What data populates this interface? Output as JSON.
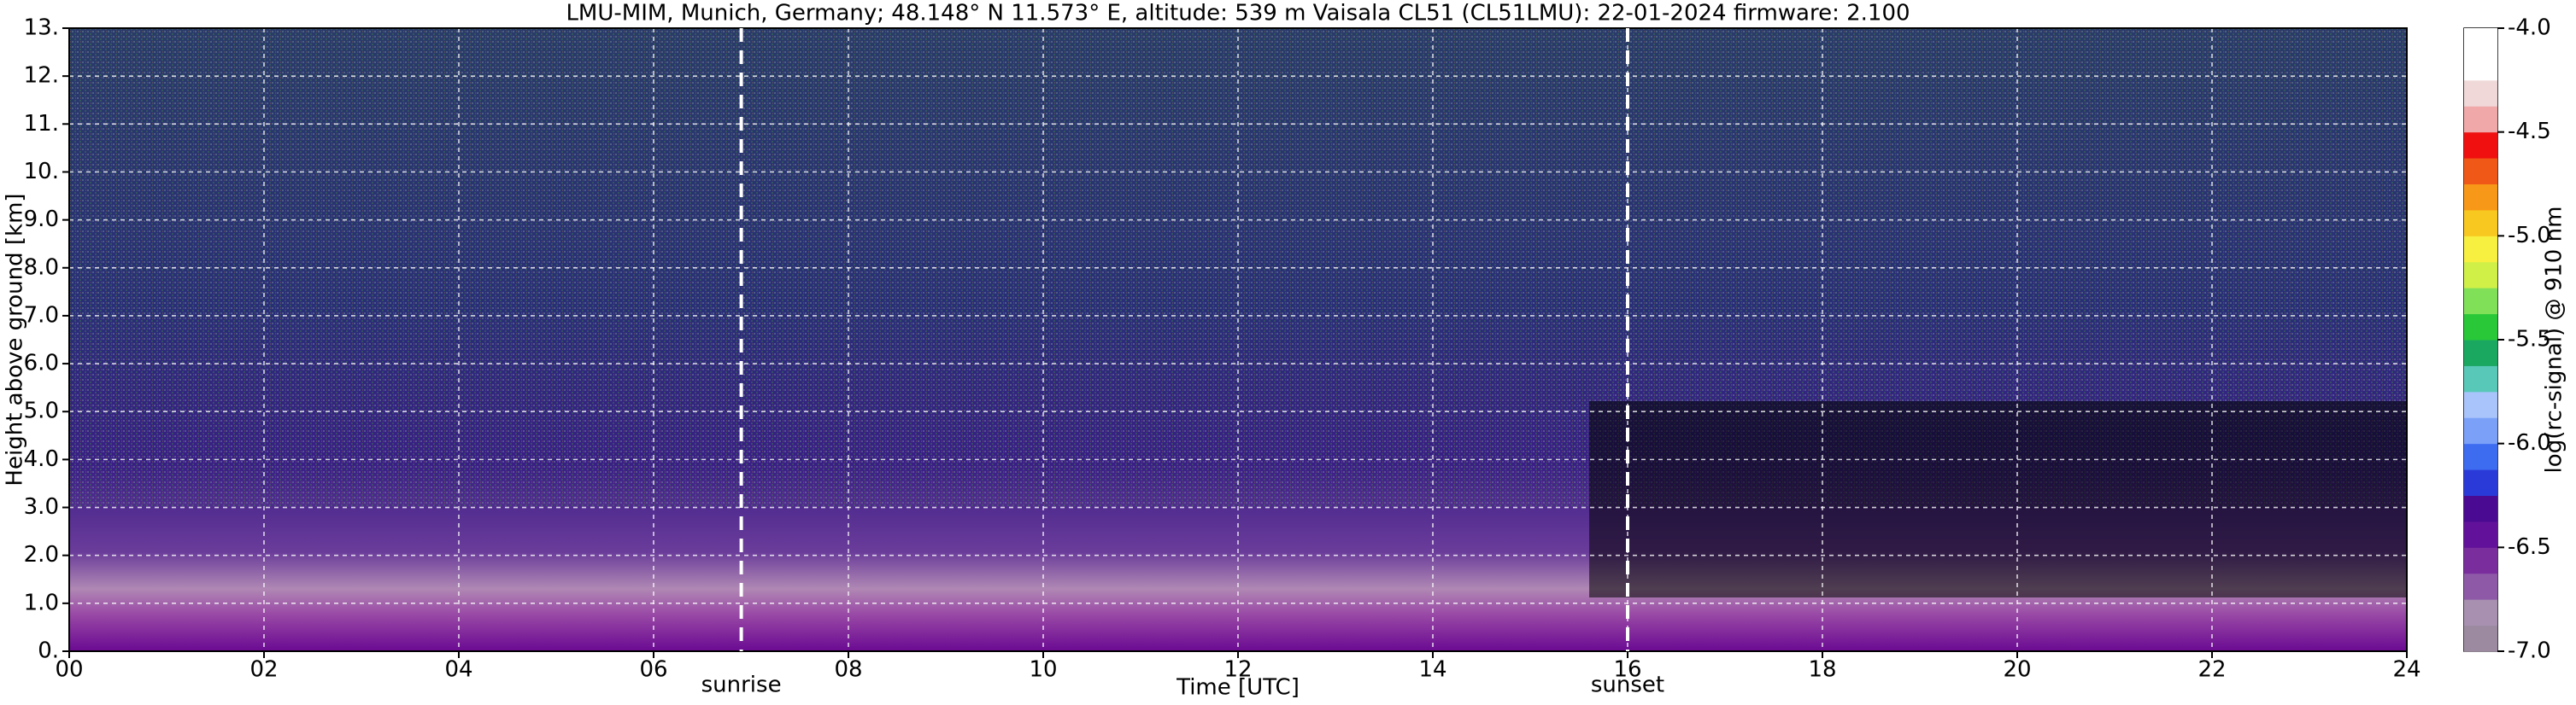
{
  "chart_data": {
    "type": "heatmap",
    "title": "LMU-MIM, Munich, Germany; 48.148° N 11.573° E, altitude: 539 m    Vaisala CL51 (CL51LMU): 22-01-2024    firmware: 2.100",
    "xlabel": "Time [UTC]",
    "ylabel": "Height above ground [km]",
    "xlim": [
      0,
      24
    ],
    "xticks": [
      {
        "value": 0,
        "label": "00"
      },
      {
        "value": 2,
        "label": "02"
      },
      {
        "value": 4,
        "label": "04"
      },
      {
        "value": 6,
        "label": "06"
      },
      {
        "value": 8,
        "label": "08"
      },
      10,
      12,
      14,
      16,
      18,
      20,
      22,
      24
    ],
    "ylim": [
      0,
      13
    ],
    "yticks": [
      {
        "value": 0,
        "label": "0."
      },
      {
        "value": 1,
        "label": "1.0"
      },
      {
        "value": 2,
        "label": "2.0"
      },
      {
        "value": 3,
        "label": "3.0"
      },
      {
        "value": 4,
        "label": "4.0"
      },
      {
        "value": 5,
        "label": "5.0"
      },
      {
        "value": 6,
        "label": "6.0"
      },
      {
        "value": 7,
        "label": "7.0"
      },
      {
        "value": 8,
        "label": "8.0"
      },
      {
        "value": 9,
        "label": "9.0"
      },
      {
        "value": 10,
        "label": "10."
      },
      {
        "value": 11,
        "label": "11."
      },
      {
        "value": 12,
        "label": "12."
      },
      {
        "value": 13,
        "label": "13."
      }
    ],
    "grid": true,
    "annotations": [
      {
        "text": "sunrise",
        "x": 6.9
      },
      {
        "text": "sunset",
        "x": 16.0
      }
    ],
    "colorbar": {
      "label": "log(rc-signal) @ 910 nm",
      "lim": [
        -7,
        -4
      ],
      "ticks": [
        {
          "value": -7,
          "label": "-7.0"
        },
        {
          "value": -6.5,
          "label": "-6.5"
        },
        {
          "value": -6,
          "label": "-6.0"
        },
        {
          "value": -5.5,
          "label": "-5.5"
        },
        {
          "value": -5,
          "label": "-5.0"
        },
        {
          "value": -4.5,
          "label": "-4.5"
        },
        {
          "value": -4,
          "label": "-4.0"
        }
      ],
      "colors": [
        "#9c8aa0",
        "#a890b0",
        "#8e5aa8",
        "#7a2e9e",
        "#62129a",
        "#4a0a92",
        "#2a3ad8",
        "#3d6cf0",
        "#7aa0f8",
        "#a8c4fa",
        "#58c8b8",
        "#1aa860",
        "#28c838",
        "#80e058",
        "#d0f048",
        "#f8f040",
        "#f8c820",
        "#f89818",
        "#f05818",
        "#f01010",
        "#f0a8a8",
        "#f0d8d8",
        "#ffffff",
        "#ffffff"
      ]
    }
  }
}
